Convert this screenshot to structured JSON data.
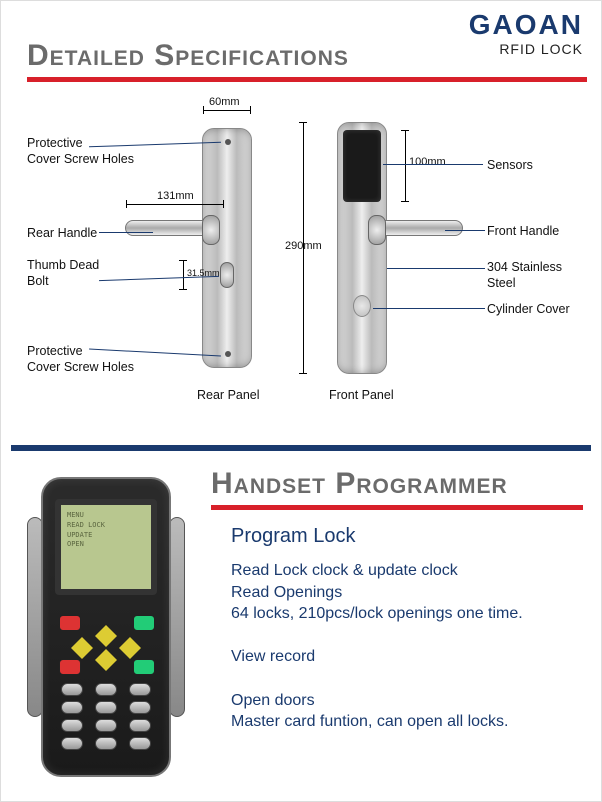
{
  "brand": {
    "name": "GAOAN",
    "sub": "RFID LOCK"
  },
  "section1": {
    "title": "Detailed Specifications",
    "rear_caption": "Rear Panel",
    "front_caption": "Front Panel",
    "dimensions": {
      "width_mm": "60mm",
      "height_mm": "290mm",
      "handle_mm": "131mm",
      "sensor_mm": "100mm",
      "bolt_mm": "31.5mm"
    },
    "labels": {
      "screw_top": "Protective\nCover Screw Holes",
      "rear_handle": "Rear Handle",
      "thumb_bolt": "Thumb Dead\nBolt",
      "screw_bottom": "Protective\nCover Screw Holes",
      "sensors": "Sensors",
      "front_handle": "Front Handle",
      "steel": "304 Stainless\nSteel",
      "cylinder": "Cylinder Cover"
    },
    "colors": {
      "accent": "#1a3a6e",
      "underline": "#d8202a",
      "title_gray": "#6b6b6b"
    }
  },
  "section2": {
    "title": "Handset Programmer",
    "heading": "Program Lock",
    "lines": [
      "Read Lock clock & update clock",
      "Read Openings",
      "64 locks, 210pcs/lock openings one time.",
      "",
      "View record",
      "",
      "Open doors",
      "Master card funtion, can open all locks."
    ]
  }
}
